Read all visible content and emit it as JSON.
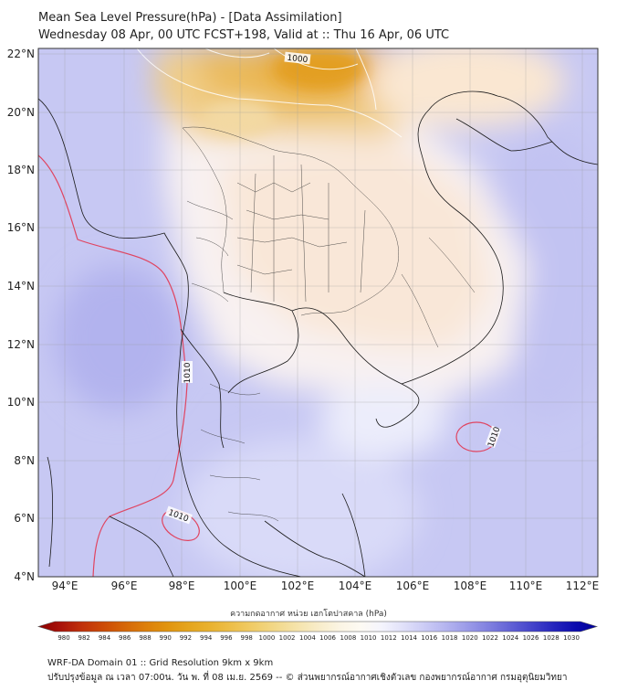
{
  "header": {
    "title": "Mean Sea Level Pressure(hPa) - [Data Assimilation]",
    "subtitle": "Wednesday 08 Apr, 00 UTC FCST+198, Valid at :: Thu 16 Apr, 06 UTC"
  },
  "map": {
    "lon_ticks": [
      "94°E",
      "96°E",
      "98°E",
      "100°E",
      "102°E",
      "104°E",
      "106°E",
      "108°E",
      "110°E",
      "112°E"
    ],
    "lat_ticks": [
      "22°N",
      "20°N",
      "18°N",
      "16°N",
      "14°N",
      "12°N",
      "10°N",
      "8°N",
      "6°N",
      "4°N"
    ],
    "contour_labels": [
      "1000",
      "1010",
      "1010",
      "1010"
    ]
  },
  "colorbar": {
    "title": "ความกดอากาศ หน่วย เฮกโตปาสคาล (hPa)",
    "ticks": [
      "980",
      "982",
      "984",
      "986",
      "988",
      "990",
      "992",
      "994",
      "996",
      "998",
      "1000",
      "1002",
      "1004",
      "1006",
      "1008",
      "1010",
      "1012",
      "1014",
      "1016",
      "1018",
      "1020",
      "1022",
      "1024",
      "1026",
      "1028",
      "1030"
    ],
    "colors": [
      "#8b0000",
      "#a8120a",
      "#c0300a",
      "#cc4a06",
      "#d56608",
      "#dd7f0a",
      "#e1940e",
      "#e5a51e",
      "#e9b230",
      "#edbf4a",
      "#f0cc68",
      "#f2d888",
      "#f5e3aa",
      "#f8ecc8",
      "#fbf4e3",
      "#fdfaf3",
      "#f4f4fd",
      "#e0e0f9",
      "#cbcbf5",
      "#b4b4ef",
      "#9a9ae8",
      "#7f7fdf",
      "#6161d5",
      "#4343ca",
      "#2525bd",
      "#0b0bae",
      "#000099"
    ]
  },
  "footer": {
    "line1": "WRF-DA Domain 01 :: Grid Resolution 9km x 9km",
    "line2": "ปรับปรุงข้อมูล ณ เวลา 07:00น. วัน พ. ที่ 08 เม.ย. 2569 -- © ส่วนพยากรณ์อากาศเชิงตัวเลข กองพยากรณ์อากาศ กรมอุตุนิยมวิทยา"
  }
}
